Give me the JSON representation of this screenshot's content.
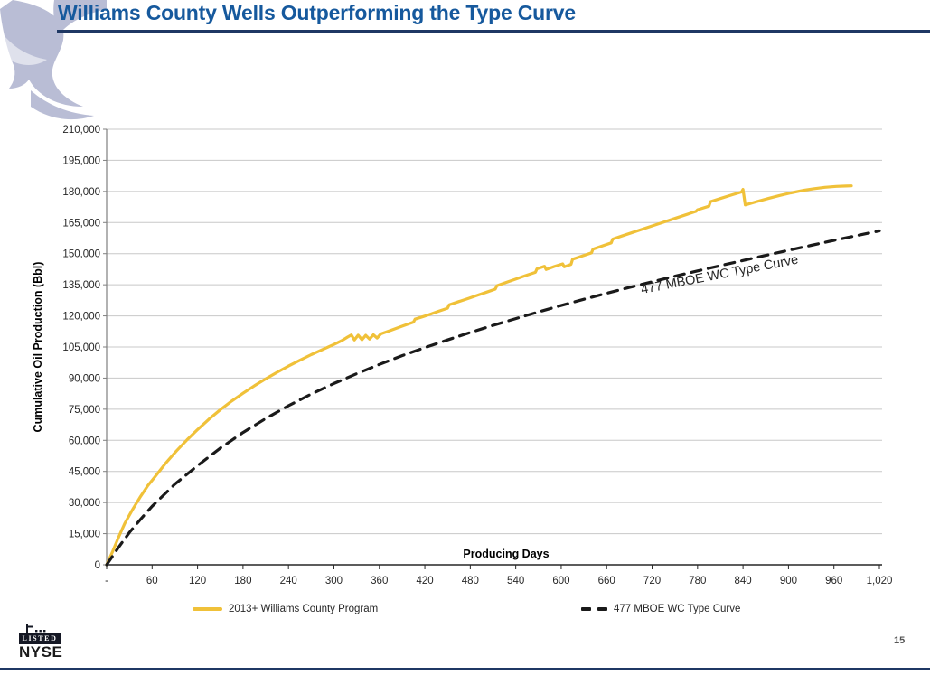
{
  "page": {
    "title": "Williams County Wells Outperforming the Type Curve",
    "page_number": "15",
    "title_color": "#16599D",
    "rule_color": "#1F3864"
  },
  "logo": {
    "listed_label": "LISTED",
    "exchange_label": "NYSE"
  },
  "chart_data": {
    "type": "line",
    "title": "",
    "xlabel": "Producing Days",
    "ylabel": "Cumulative Oil Production (Bbl)",
    "xlim": [
      0,
      1020
    ],
    "ylim": [
      0,
      210000
    ],
    "grid": "horizontal-only",
    "legend_position": "bottom",
    "x_ticks": [
      0,
      60,
      120,
      180,
      240,
      300,
      360,
      420,
      480,
      540,
      600,
      660,
      720,
      780,
      840,
      900,
      960,
      1020
    ],
    "x_tick_labels": [
      "-",
      "60",
      "120",
      "180",
      "240",
      "300",
      "360",
      "420",
      "480",
      "540",
      "600",
      "660",
      "720",
      "780",
      "840",
      "900",
      "960",
      "1,020"
    ],
    "y_ticks": [
      0,
      15000,
      30000,
      45000,
      60000,
      75000,
      90000,
      105000,
      120000,
      135000,
      150000,
      165000,
      180000,
      195000,
      210000
    ],
    "y_tick_labels": [
      "0",
      "15,000",
      "30,000",
      "45,000",
      "60,000",
      "75,000",
      "90,000",
      "105,000",
      "120,000",
      "135,000",
      "150,000",
      "165,000",
      "180,000",
      "195,000",
      "210,000"
    ],
    "annotation": {
      "text": "477 MBOE WC Type Curve",
      "x_day": 810,
      "y_bbl": 138000,
      "rotation_deg": -11
    },
    "colors": {
      "program_line": "#F0C139",
      "type_curve_line": "#1A1A1A",
      "gridline": "#C8C8C8",
      "axis": "#7F7F7F",
      "axis_bottom": "#262626",
      "tick_text": "#262626"
    },
    "series": [
      {
        "name": "2013+ Williams County Program",
        "style": "solid",
        "color": "#F0C139",
        "points": [
          [
            0,
            0
          ],
          [
            8,
            6500
          ],
          [
            16,
            13500
          ],
          [
            24,
            20000
          ],
          [
            34,
            26500
          ],
          [
            44,
            32500
          ],
          [
            54,
            38000
          ],
          [
            64,
            42500
          ],
          [
            78,
            49000
          ],
          [
            92,
            54800
          ],
          [
            106,
            60200
          ],
          [
            120,
            65200
          ],
          [
            135,
            70200
          ],
          [
            150,
            74700
          ],
          [
            165,
            78900
          ],
          [
            180,
            82700
          ],
          [
            195,
            86300
          ],
          [
            210,
            89600
          ],
          [
            225,
            92800
          ],
          [
            240,
            95800
          ],
          [
            255,
            98600
          ],
          [
            270,
            101300
          ],
          [
            285,
            103800
          ],
          [
            300,
            106200
          ],
          [
            310,
            108000
          ],
          [
            318,
            109800
          ],
          [
            323,
            110800
          ],
          [
            327,
            108400
          ],
          [
            332,
            110700
          ],
          [
            337,
            108500
          ],
          [
            342,
            110600
          ],
          [
            347,
            108800
          ],
          [
            352,
            110900
          ],
          [
            357,
            109300
          ],
          [
            362,
            111300
          ],
          [
            375,
            113000
          ],
          [
            390,
            115000
          ],
          [
            405,
            117000
          ],
          [
            407,
            118400
          ],
          [
            418,
            119700
          ],
          [
            425,
            120500
          ],
          [
            438,
            122200
          ],
          [
            450,
            123700
          ],
          [
            452,
            125300
          ],
          [
            465,
            126900
          ],
          [
            478,
            128500
          ],
          [
            490,
            130000
          ],
          [
            502,
            131500
          ],
          [
            513,
            132900
          ],
          [
            515,
            134500
          ],
          [
            527,
            136100
          ],
          [
            540,
            137700
          ],
          [
            553,
            139400
          ],
          [
            566,
            141000
          ],
          [
            568,
            142700
          ],
          [
            578,
            143900
          ],
          [
            580,
            142400
          ],
          [
            591,
            143800
          ],
          [
            602,
            145100
          ],
          [
            604,
            143700
          ],
          [
            613,
            144800
          ],
          [
            615,
            147300
          ],
          [
            627,
            148800
          ],
          [
            640,
            150400
          ],
          [
            642,
            152200
          ],
          [
            654,
            153700
          ],
          [
            666,
            155200
          ],
          [
            668,
            157000
          ],
          [
            680,
            158500
          ],
          [
            694,
            160200
          ],
          [
            708,
            161900
          ],
          [
            722,
            163600
          ],
          [
            736,
            165300
          ],
          [
            750,
            167000
          ],
          [
            764,
            168700
          ],
          [
            778,
            170400
          ],
          [
            780,
            171200
          ],
          [
            795,
            172900
          ],
          [
            797,
            175100
          ],
          [
            812,
            176800
          ],
          [
            826,
            178400
          ],
          [
            838,
            179700
          ],
          [
            840,
            181000
          ],
          [
            843,
            173500
          ],
          [
            858,
            175100
          ],
          [
            873,
            176600
          ],
          [
            888,
            178000
          ],
          [
            903,
            179300
          ],
          [
            918,
            180400
          ],
          [
            933,
            181300
          ],
          [
            948,
            182000
          ],
          [
            963,
            182400
          ],
          [
            976,
            182600
          ],
          [
            983,
            182700
          ]
        ]
      },
      {
        "name": "477 MBOE WC Type Curve",
        "style": "dashed",
        "color": "#1A1A1A",
        "points": [
          [
            0,
            0
          ],
          [
            15,
            8000
          ],
          [
            30,
            15500
          ],
          [
            45,
            22000
          ],
          [
            60,
            28200
          ],
          [
            90,
            38800
          ],
          [
            120,
            47800
          ],
          [
            150,
            56200
          ],
          [
            180,
            63800
          ],
          [
            210,
            70500
          ],
          [
            240,
            76700
          ],
          [
            270,
            82300
          ],
          [
            300,
            87400
          ],
          [
            330,
            92100
          ],
          [
            360,
            96600
          ],
          [
            390,
            100800
          ],
          [
            420,
            104700
          ],
          [
            450,
            108400
          ],
          [
            480,
            112000
          ],
          [
            510,
            115400
          ],
          [
            540,
            118700
          ],
          [
            570,
            121900
          ],
          [
            600,
            125000
          ],
          [
            630,
            128000
          ],
          [
            660,
            130900
          ],
          [
            690,
            133700
          ],
          [
            720,
            136400
          ],
          [
            750,
            139100
          ],
          [
            780,
            141700
          ],
          [
            810,
            144200
          ],
          [
            840,
            146700
          ],
          [
            870,
            149200
          ],
          [
            900,
            151600
          ],
          [
            930,
            154000
          ],
          [
            960,
            156400
          ],
          [
            990,
            158700
          ],
          [
            1020,
            161000
          ]
        ]
      }
    ]
  }
}
